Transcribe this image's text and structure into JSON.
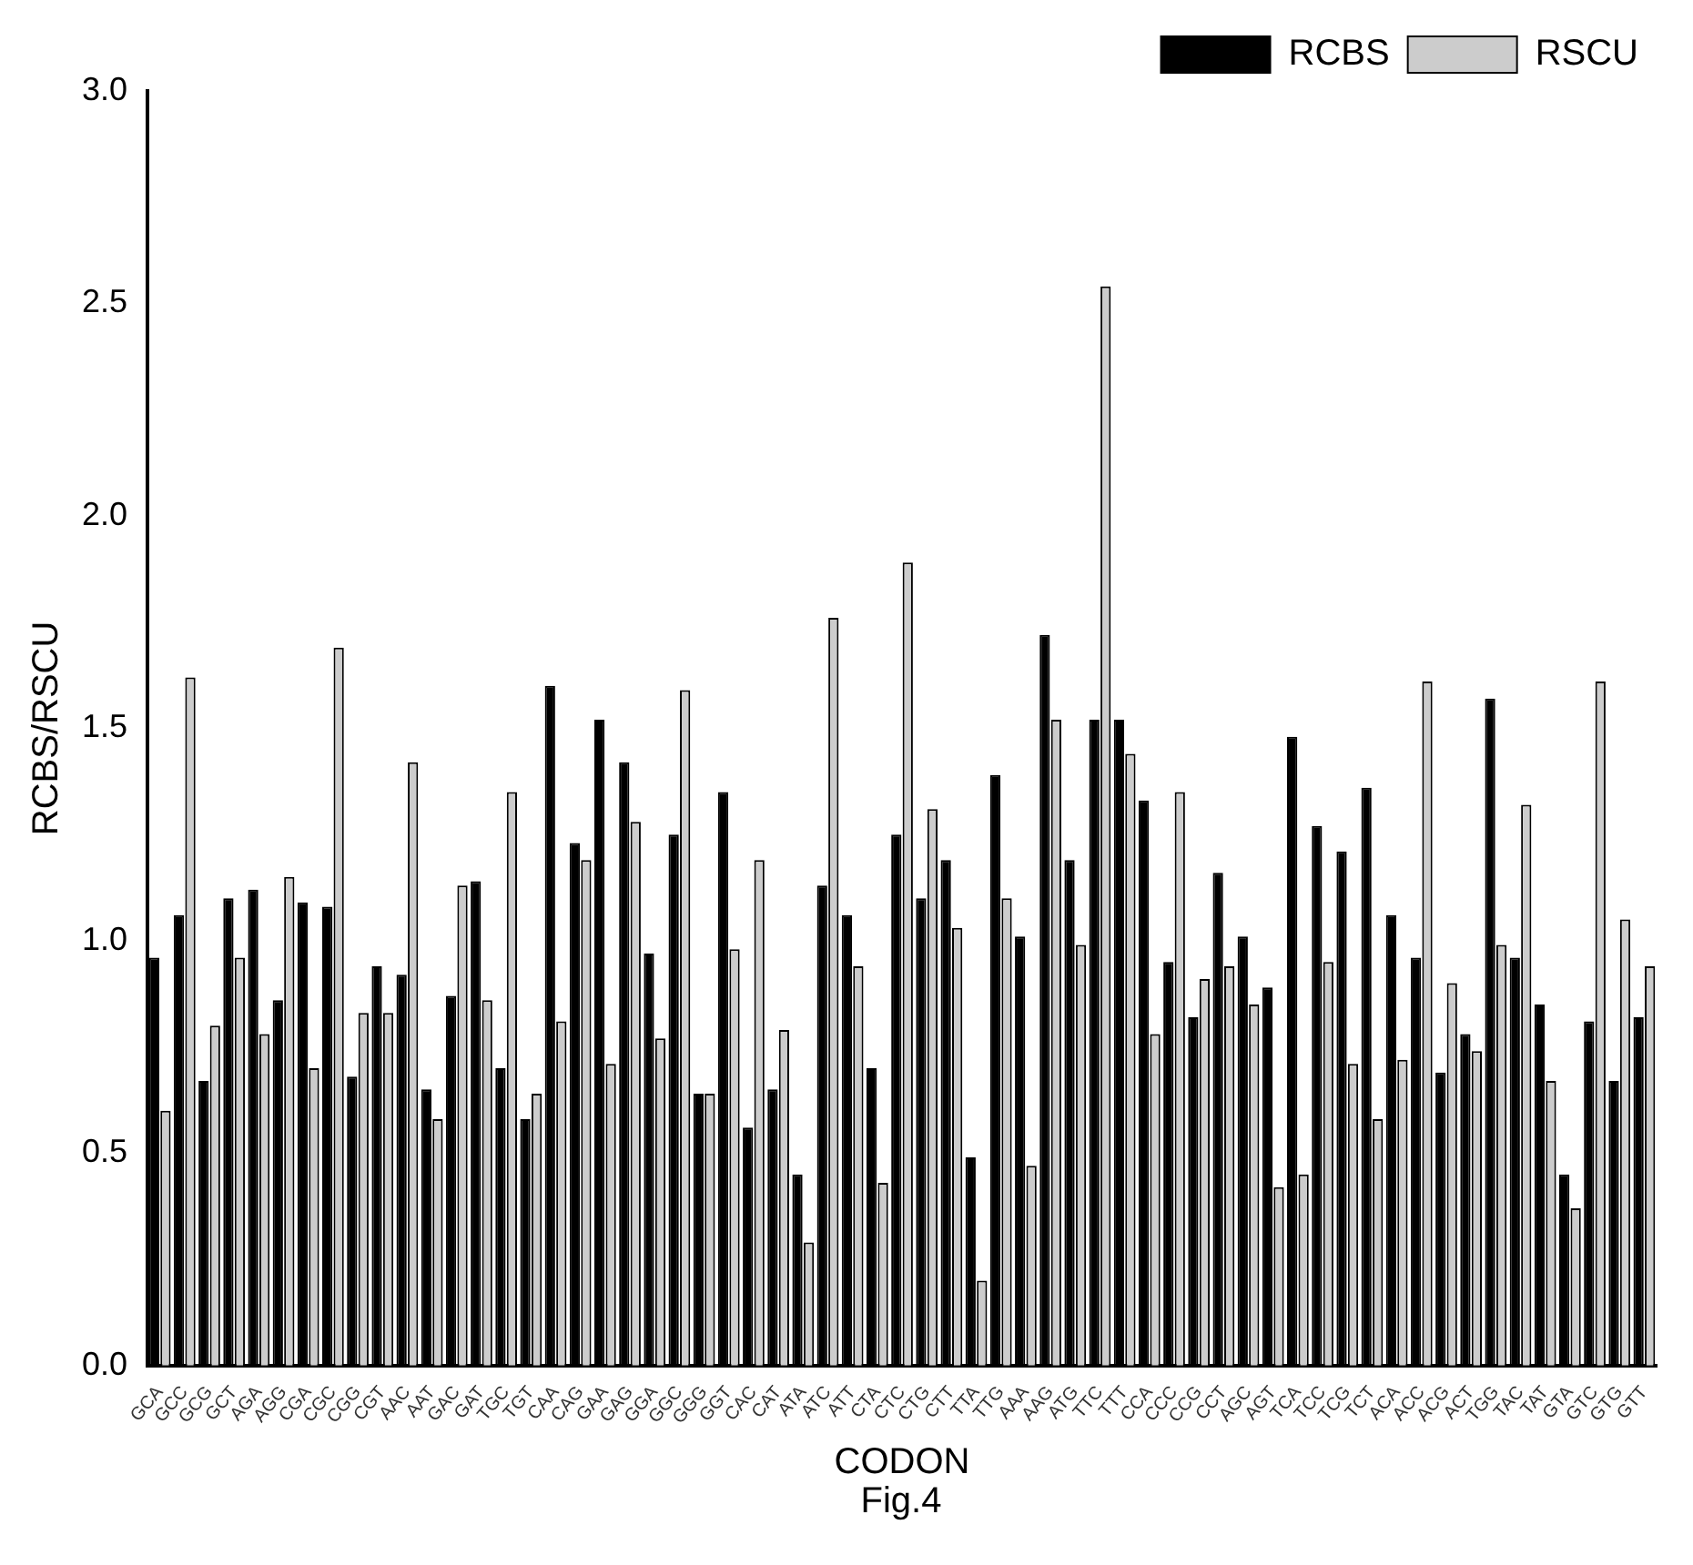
{
  "chart_data": {
    "type": "bar",
    "xlabel": "CODON",
    "ylabel": "RCBS/RSCU",
    "annotations": [
      "Fig.4"
    ],
    "categories": [
      "GCA",
      "GCC",
      "GCG",
      "GCT",
      "AGA",
      "AGG",
      "CGA",
      "CGC",
      "CGG",
      "CGT",
      "AAC",
      "AAT",
      "GAC",
      "GAT",
      "TGC",
      "TGT",
      "CAA",
      "CAG",
      "GAA",
      "GAG",
      "GGA",
      "GGC",
      "GGG",
      "GGT",
      "CAC",
      "CAT",
      "ATA",
      "ATC",
      "ATT",
      "CTA",
      "CTC",
      "CTG",
      "CTT",
      "TTA",
      "TTG",
      "AAA",
      "AAG",
      "ATG",
      "TTC",
      "TTT",
      "CCA",
      "CCC",
      "CCG",
      "CCT",
      "AGC",
      "AGT",
      "TCA",
      "TCC",
      "TCG",
      "TCT",
      "ACA",
      "ACC",
      "ACG",
      "ACT",
      "TGG",
      "TAC",
      "TAT",
      "GTA",
      "GTC",
      "GTG",
      "GTT"
    ],
    "series": [
      {
        "name": "RCBS",
        "color": "#000000",
        "values": [
          0.96,
          1.06,
          0.67,
          1.1,
          1.12,
          0.86,
          1.09,
          1.08,
          0.68,
          0.94,
          0.92,
          0.65,
          0.87,
          1.14,
          0.7,
          0.58,
          1.6,
          1.23,
          1.52,
          1.42,
          0.97,
          1.25,
          0.64,
          1.35,
          0.56,
          0.65,
          0.45,
          1.13,
          1.06,
          0.7,
          1.25,
          1.1,
          1.19,
          0.49,
          1.39,
          1.01,
          1.72,
          1.19,
          1.52,
          1.52,
          1.33,
          0.95,
          0.82,
          1.16,
          1.01,
          0.89,
          1.48,
          1.27,
          1.21,
          1.36,
          1.06,
          0.96,
          0.69,
          0.78,
          1.57,
          0.96,
          0.85,
          0.45,
          0.81,
          0.67,
          0.82
        ]
      },
      {
        "name": "RSCU",
        "color": "#cccccc",
        "values": [
          0.6,
          1.62,
          0.8,
          0.96,
          0.78,
          1.15,
          0.7,
          1.69,
          0.83,
          0.83,
          1.42,
          0.58,
          1.13,
          0.86,
          1.35,
          0.64,
          0.81,
          1.19,
          0.71,
          1.28,
          0.77,
          1.59,
          0.64,
          0.98,
          1.19,
          0.79,
          0.29,
          1.76,
          0.94,
          0.43,
          1.89,
          1.31,
          1.03,
          0.2,
          1.1,
          0.47,
          1.52,
          0.99,
          2.54,
          1.44,
          0.78,
          1.35,
          0.91,
          0.94,
          0.85,
          0.42,
          0.45,
          0.95,
          0.71,
          0.58,
          0.72,
          1.61,
          0.9,
          0.74,
          0.99,
          1.32,
          0.67,
          0.37,
          1.61,
          1.05,
          0.94
        ]
      }
    ],
    "ylim": [
      0,
      3
    ],
    "yticks": [
      {
        "value": 0,
        "label": "0.0"
      },
      0.5,
      {
        "value": 1,
        "label": "1.0"
      },
      1.5,
      {
        "value": 2,
        "label": "2.0"
      },
      2.5,
      {
        "value": 3,
        "label": "3.0"
      }
    ],
    "grid": false,
    "legend": "top right"
  }
}
